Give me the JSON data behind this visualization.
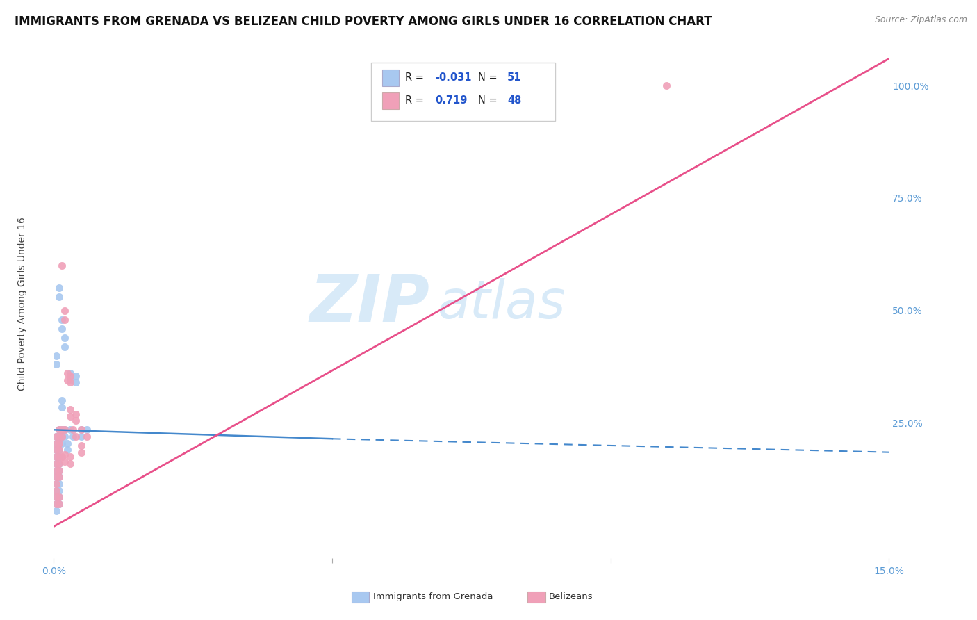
{
  "title": "IMMIGRANTS FROM GRENADA VS BELIZEAN CHILD POVERTY AMONG GIRLS UNDER 16 CORRELATION CHART",
  "source": "Source: ZipAtlas.com",
  "ylabel": "Child Poverty Among Girls Under 16",
  "xlim": [
    0.0,
    0.15
  ],
  "ylim": [
    -0.05,
    1.08
  ],
  "xticks": [
    0.0,
    0.05,
    0.1,
    0.15
  ],
  "xticklabels": [
    "0.0%",
    "",
    "",
    "15.0%"
  ],
  "yticks_right": [
    0.0,
    0.25,
    0.5,
    0.75,
    1.0
  ],
  "yticklabels_right": [
    "",
    "25.0%",
    "50.0%",
    "75.0%",
    "100.0%"
  ],
  "grenada_color": "#a8c8f0",
  "belize_color": "#f0a0b8",
  "grenada_line_color": "#4488cc",
  "belize_line_color": "#e8508a",
  "background_color": "#ffffff",
  "grid_color": "#d8d8d8",
  "watermark_color": "#d8eaf8",
  "tick_color": "#5b9bd5",
  "title_fontsize": 12,
  "axis_label_fontsize": 10,
  "tick_fontsize": 10,
  "grenada_scatter": [
    [
      0.0005,
      0.22
    ],
    [
      0.0005,
      0.205
    ],
    [
      0.0005,
      0.19
    ],
    [
      0.0005,
      0.175
    ],
    [
      0.0005,
      0.16
    ],
    [
      0.0005,
      0.145
    ],
    [
      0.0005,
      0.13
    ],
    [
      0.0005,
      0.115
    ],
    [
      0.0005,
      0.1
    ],
    [
      0.0005,
      0.085
    ],
    [
      0.0005,
      0.07
    ],
    [
      0.0005,
      0.055
    ],
    [
      0.001,
      0.235
    ],
    [
      0.001,
      0.22
    ],
    [
      0.001,
      0.205
    ],
    [
      0.001,
      0.19
    ],
    [
      0.001,
      0.175
    ],
    [
      0.001,
      0.16
    ],
    [
      0.001,
      0.145
    ],
    [
      0.001,
      0.13
    ],
    [
      0.001,
      0.115
    ],
    [
      0.001,
      0.1
    ],
    [
      0.001,
      0.085
    ],
    [
      0.001,
      0.07
    ],
    [
      0.0015,
      0.48
    ],
    [
      0.0015,
      0.46
    ],
    [
      0.0015,
      0.235
    ],
    [
      0.0015,
      0.22
    ],
    [
      0.0015,
      0.205
    ],
    [
      0.002,
      0.44
    ],
    [
      0.002,
      0.42
    ],
    [
      0.002,
      0.235
    ],
    [
      0.002,
      0.22
    ],
    [
      0.003,
      0.36
    ],
    [
      0.003,
      0.345
    ],
    [
      0.003,
      0.235
    ],
    [
      0.004,
      0.355
    ],
    [
      0.004,
      0.34
    ],
    [
      0.005,
      0.235
    ],
    [
      0.005,
      0.22
    ],
    [
      0.006,
      0.235
    ],
    [
      0.0035,
      0.22
    ],
    [
      0.0025,
      0.205
    ],
    [
      0.0025,
      0.19
    ],
    [
      0.0005,
      0.4
    ],
    [
      0.0005,
      0.38
    ],
    [
      0.001,
      0.55
    ],
    [
      0.001,
      0.53
    ],
    [
      0.0015,
      0.3
    ],
    [
      0.0015,
      0.285
    ]
  ],
  "belize_scatter": [
    [
      0.0005,
      0.22
    ],
    [
      0.0005,
      0.205
    ],
    [
      0.0005,
      0.19
    ],
    [
      0.0005,
      0.175
    ],
    [
      0.0005,
      0.16
    ],
    [
      0.0005,
      0.145
    ],
    [
      0.0005,
      0.13
    ],
    [
      0.0005,
      0.115
    ],
    [
      0.0005,
      0.1
    ],
    [
      0.001,
      0.235
    ],
    [
      0.001,
      0.22
    ],
    [
      0.001,
      0.205
    ],
    [
      0.001,
      0.19
    ],
    [
      0.001,
      0.175
    ],
    [
      0.001,
      0.16
    ],
    [
      0.001,
      0.145
    ],
    [
      0.001,
      0.13
    ],
    [
      0.0015,
      0.6
    ],
    [
      0.0015,
      0.235
    ],
    [
      0.0015,
      0.22
    ],
    [
      0.002,
      0.5
    ],
    [
      0.002,
      0.48
    ],
    [
      0.002,
      0.235
    ],
    [
      0.0025,
      0.36
    ],
    [
      0.0025,
      0.345
    ],
    [
      0.003,
      0.355
    ],
    [
      0.003,
      0.34
    ],
    [
      0.003,
      0.28
    ],
    [
      0.003,
      0.265
    ],
    [
      0.004,
      0.27
    ],
    [
      0.004,
      0.255
    ],
    [
      0.004,
      0.22
    ],
    [
      0.005,
      0.235
    ],
    [
      0.006,
      0.22
    ],
    [
      0.0035,
      0.235
    ],
    [
      0.002,
      0.18
    ],
    [
      0.002,
      0.165
    ],
    [
      0.0015,
      0.175
    ],
    [
      0.001,
      0.085
    ],
    [
      0.001,
      0.07
    ],
    [
      0.0005,
      0.085
    ],
    [
      0.0005,
      0.07
    ],
    [
      0.005,
      0.2
    ],
    [
      0.005,
      0.185
    ],
    [
      0.003,
      0.175
    ],
    [
      0.003,
      0.16
    ],
    [
      0.11,
      1.0
    ]
  ],
  "grenada_line_solid": [
    [
      0.0,
      0.235
    ],
    [
      0.05,
      0.215
    ]
  ],
  "grenada_line_dashed": [
    [
      0.05,
      0.215
    ],
    [
      0.15,
      0.185
    ]
  ],
  "belize_line": [
    [
      0.0,
      0.02
    ],
    [
      0.15,
      1.06
    ]
  ]
}
